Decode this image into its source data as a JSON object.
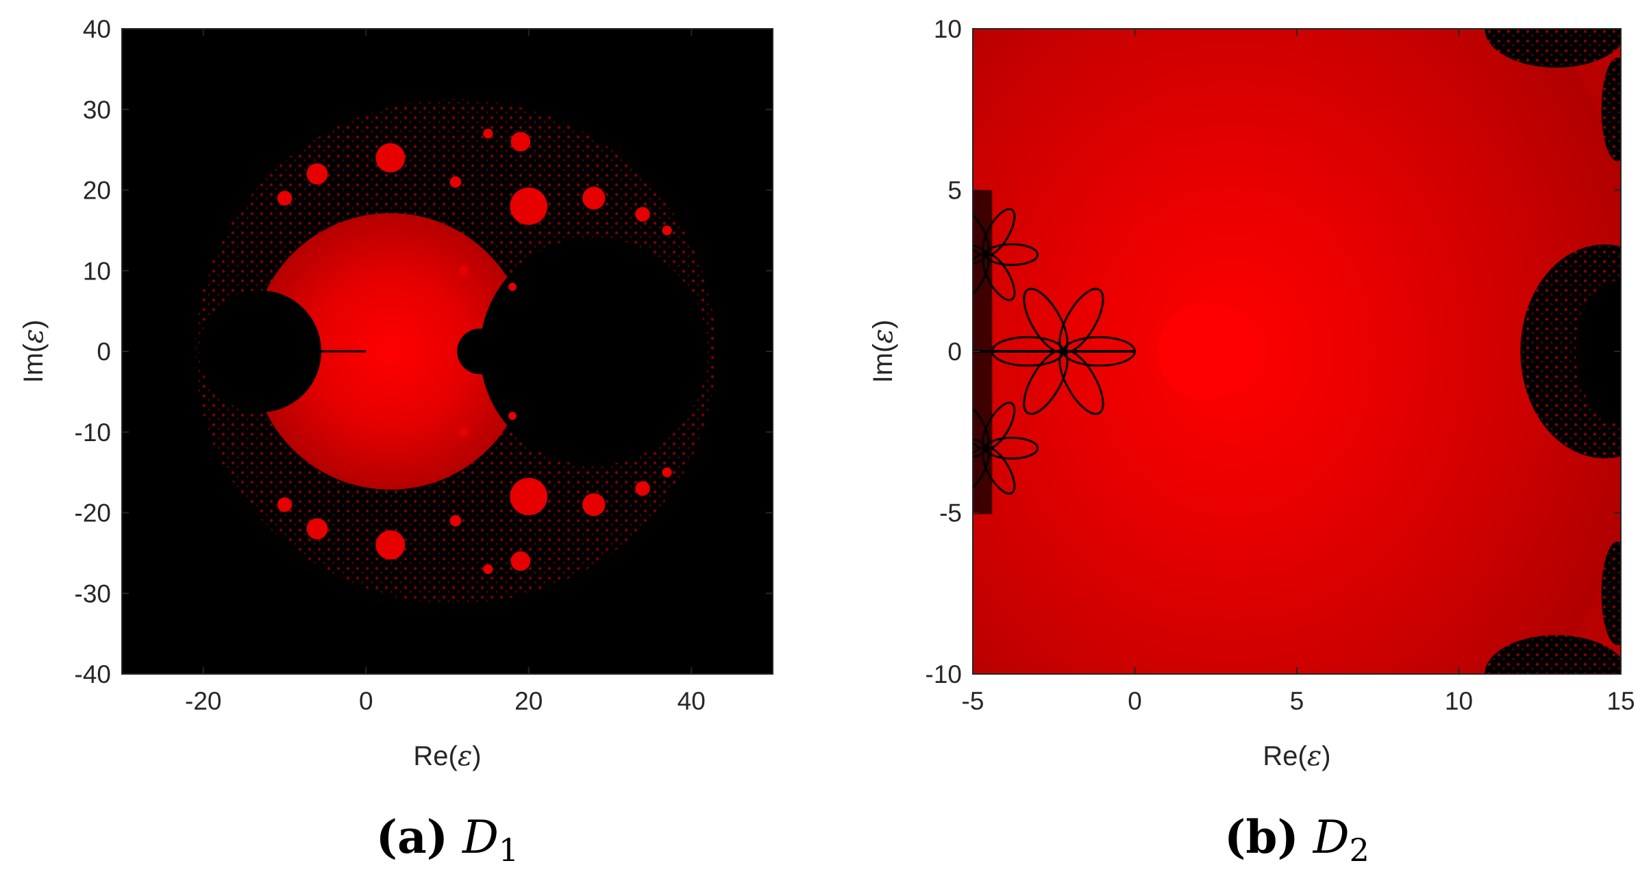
{
  "chart_data": [
    {
      "type": "heatmap",
      "panel_label": "(a)",
      "caption_var": "D",
      "caption_sub": "1",
      "xlabel_base": "Re(",
      "ylabel_base": "Im(",
      "axis_symbol": "ε",
      "axis_close": ")",
      "xlim": [
        -30,
        50
      ],
      "ylim": [
        -40,
        40
      ],
      "xticks": [
        -20,
        0,
        20,
        40
      ],
      "yticks": [
        -40,
        -30,
        -20,
        -10,
        0,
        10,
        20,
        30,
        40
      ],
      "colormap": {
        "background": "#000000",
        "fractal": "#000000",
        "basin_inner": "#ff0000",
        "basin_outer": "#b00000"
      },
      "features": [
        {
          "kind": "basin",
          "shape": "cardioid",
          "center": [
            3,
            0
          ],
          "radius": 17
        },
        {
          "kind": "fractal-region",
          "shape": "disc",
          "center": [
            28,
            0
          ],
          "radius": 14
        },
        {
          "kind": "fractal-region",
          "shape": "disc",
          "center": [
            -13,
            0
          ],
          "radius": 7.5
        }
      ],
      "grid": false
    },
    {
      "type": "heatmap",
      "panel_label": "(b)",
      "caption_var": "D",
      "caption_sub": "2",
      "xlabel_base": "Re(",
      "ylabel_base": "Im(",
      "axis_symbol": "ε",
      "axis_close": ")",
      "xlim": [
        -5,
        15
      ],
      "ylim": [
        -10,
        10
      ],
      "xticks": [
        -5,
        0,
        5,
        10,
        15
      ],
      "yticks": [
        -10,
        -5,
        0,
        5,
        10
      ],
      "colormap": {
        "background": "#b80000",
        "fractal": "#000000",
        "basin_inner": "#ff0000",
        "basin_outer": "#b80000"
      },
      "features": [
        {
          "kind": "basin-center",
          "center": [
            2.2,
            0
          ]
        },
        {
          "kind": "fractal-region",
          "shape": "flower",
          "center": [
            -2.2,
            0
          ]
        },
        {
          "kind": "fractal-region",
          "shape": "flower",
          "center": [
            -4.6,
            3
          ]
        },
        {
          "kind": "fractal-region",
          "shape": "flower",
          "center": [
            -4.6,
            -3
          ]
        },
        {
          "kind": "fractal-region",
          "shape": "cluster",
          "center": [
            14.5,
            0
          ]
        },
        {
          "kind": "fractal-region",
          "shape": "cluster",
          "center": [
            13,
            10
          ]
        },
        {
          "kind": "fractal-region",
          "shape": "cluster",
          "center": [
            13,
            -10
          ]
        }
      ],
      "grid": false
    }
  ]
}
